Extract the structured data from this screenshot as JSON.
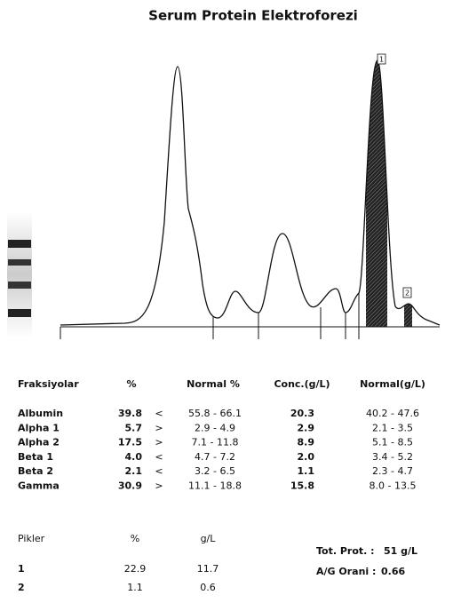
{
  "header": {
    "title": "Serum Protein Elektroforezi"
  },
  "peak_markers": [
    "1",
    "2"
  ],
  "fractions": {
    "columns": [
      "Fraksiyolar",
      "%",
      "Normal %",
      "Conc.(g/L)",
      "Normal(g/L)"
    ],
    "rows": [
      [
        "Albumin",
        "39.8",
        "<",
        "55.8 - 66.1",
        "20.3",
        "40.2 - 47.6"
      ],
      [
        "Alpha 1",
        "5.7",
        ">",
        "2.9 - 4.9",
        "2.9",
        "2.1 - 3.5"
      ],
      [
        "Alpha 2",
        "17.5",
        ">",
        "7.1 - 11.8",
        "8.9",
        "5.1 - 8.5"
      ],
      [
        "Beta 1",
        "4.0",
        "<",
        "4.7 - 7.2",
        "2.0",
        "3.4 - 5.2"
      ],
      [
        "Beta 2",
        "2.1",
        "<",
        "3.2 - 6.5",
        "1.1",
        "2.3 - 4.7"
      ],
      [
        "Gamma",
        "30.9",
        ">",
        "11.1 - 18.8",
        "15.8",
        "8.0 - 13.5"
      ]
    ]
  },
  "peaks": {
    "columns": [
      "Pikler",
      "%",
      "g/L"
    ],
    "rows": [
      [
        "1",
        "22.9",
        "11.7"
      ],
      [
        "2",
        "1.1",
        "0.6"
      ]
    ]
  },
  "totals": {
    "total_protein_label": "Tot. Prot. :",
    "total_protein": "51 g/L",
    "ag_label": "A/G Orani :",
    "ag_ratio": "0.66"
  }
}
